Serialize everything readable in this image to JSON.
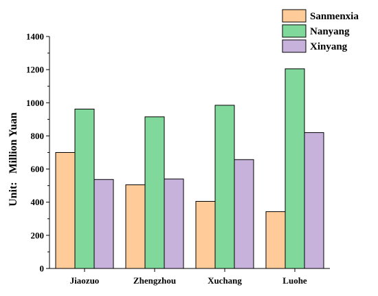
{
  "chart_data": {
    "type": "bar",
    "categories": [
      "Jiaozuo",
      "Zhengzhou",
      "Xuchang",
      "Luohe"
    ],
    "series": [
      {
        "name": "Sanmenxia",
        "values": [
          700,
          505,
          405,
          343
        ],
        "color": "#FFCC99"
      },
      {
        "name": "Nanyang",
        "values": [
          962,
          915,
          985,
          1205
        ],
        "color": "#80D99B"
      },
      {
        "name": "Xinyang",
        "values": [
          537,
          540,
          657,
          820
        ],
        "color": "#C7B2DB"
      }
    ],
    "title": "",
    "xlabel": "",
    "ylabel": "Unit:   Million Yuan",
    "ylim": [
      0,
      1400
    ],
    "yticks": [
      0,
      200,
      400,
      600,
      800,
      1000,
      1200,
      1400
    ],
    "grid": false,
    "legend_position": "top-right"
  }
}
